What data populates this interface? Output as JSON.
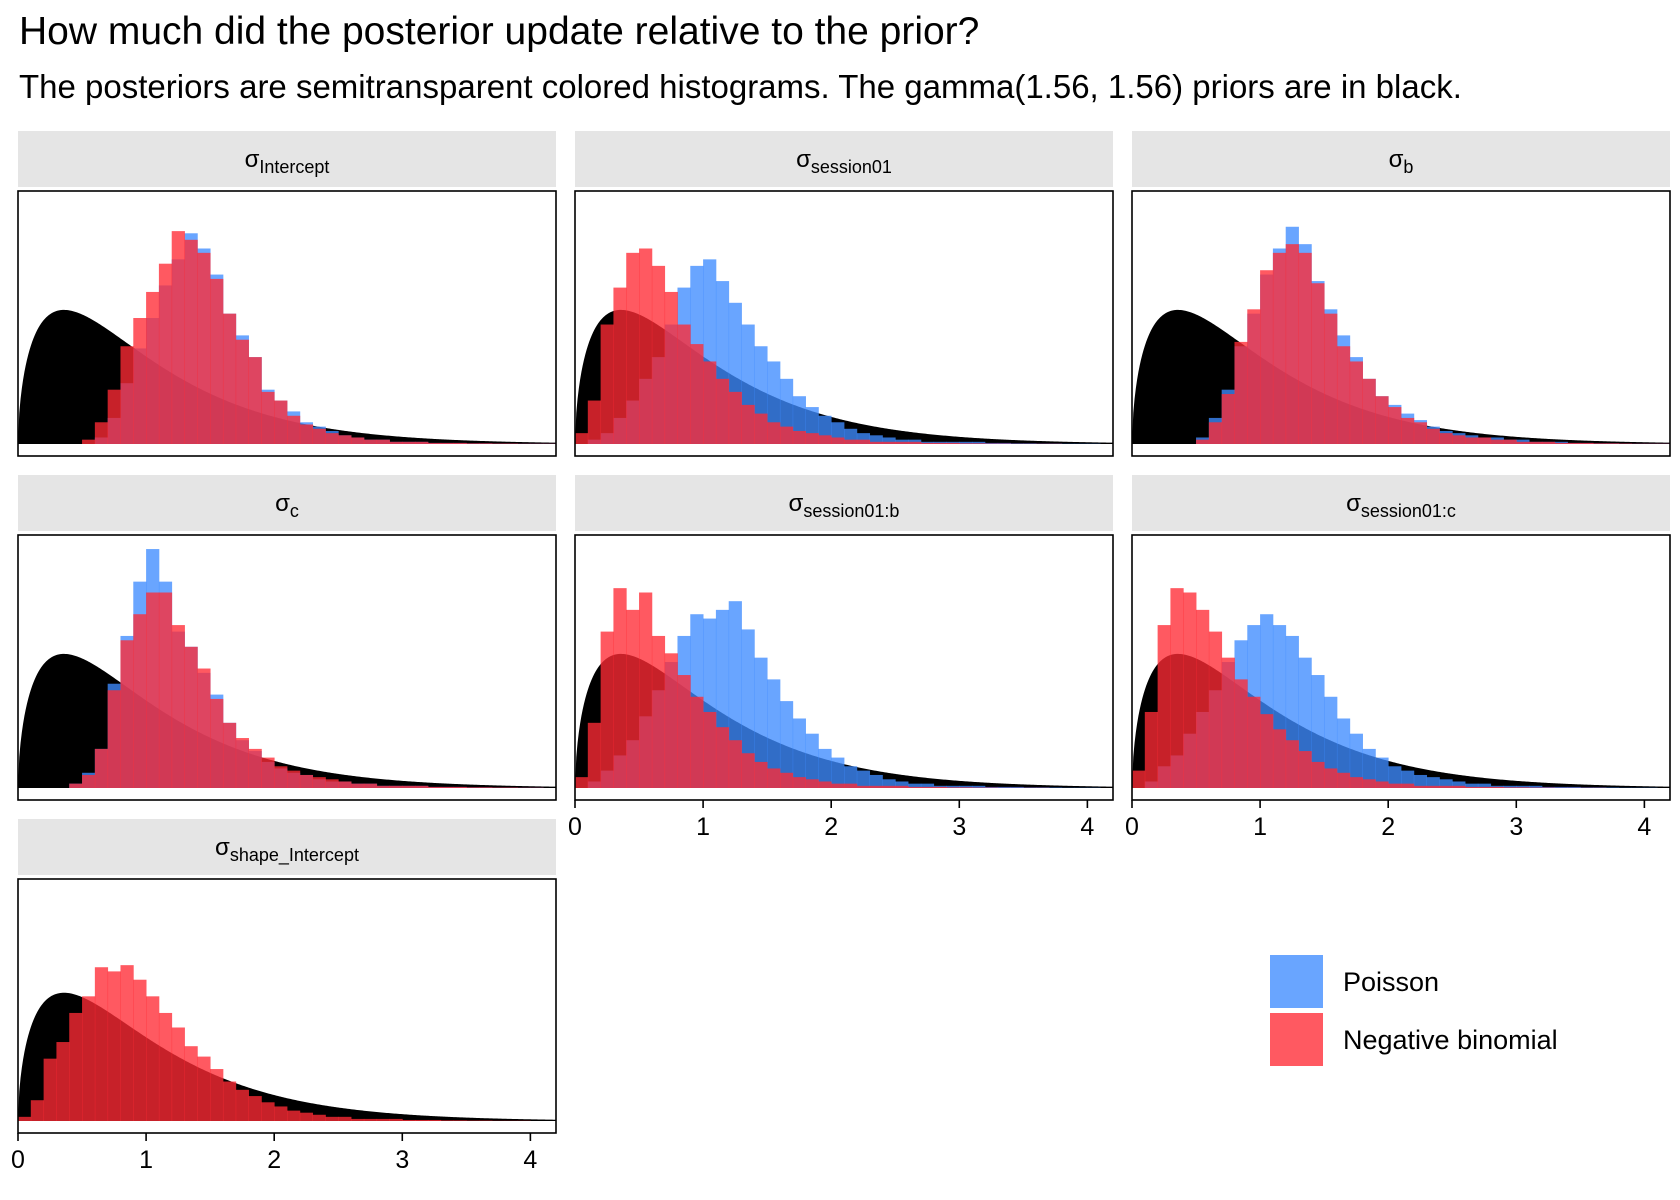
{
  "chart_data": {
    "type": "histogram",
    "title": "How much did the posterior update relative to the prior?",
    "subtitle": "The posteriors are semitransparent colored histograms. The gamma(1.56, 1.56) priors are in black.",
    "xlim": [
      0,
      4.2
    ],
    "x_ticks": [
      0,
      1,
      2,
      3,
      4
    ],
    "bin_width": 0.1,
    "bin_start": 0,
    "prior": {
      "distribution": "gamma",
      "shape": 1.56,
      "rate": 1.56,
      "color": "#000000"
    },
    "series": [
      {
        "name": "Poisson",
        "color": "#3f8cff",
        "opacity": 0.78
      },
      {
        "name": "Negative binomial",
        "color": "#ff2a35",
        "opacity": 0.78
      }
    ],
    "legend_position": "bottom-right",
    "panels": [
      {
        "symbol": "σ",
        "subscript": "Intercept",
        "poisson": [
          0,
          0,
          0,
          0,
          0,
          0,
          3,
          12,
          28,
          44,
          58,
          73,
          85,
          97,
          90,
          78,
          60,
          50,
          40,
          25,
          20,
          15,
          10,
          8,
          6,
          4,
          3,
          2,
          2,
          1,
          1,
          1,
          0.5,
          0.5,
          0.5,
          0.3,
          0.3,
          0.2,
          0.2,
          0.1,
          0.1,
          0.1
        ],
        "negbin": [
          0,
          0,
          0,
          0,
          0,
          2,
          10,
          25,
          45,
          58,
          70,
          83,
          98,
          94,
          88,
          76,
          60,
          48,
          40,
          24,
          20,
          13,
          9,
          7,
          5,
          4,
          3,
          2,
          2,
          1,
          1,
          1,
          0.5,
          0.5,
          0.5,
          0.3,
          0.3,
          0.2,
          0.2,
          0.1,
          0.1,
          0.1
        ]
      },
      {
        "symbol": "σ",
        "subscript": "session01",
        "poisson": [
          0,
          2,
          5,
          12,
          20,
          30,
          40,
          55,
          72,
          82,
          85,
          75,
          65,
          55,
          45,
          38,
          30,
          22,
          17,
          13,
          10,
          7,
          5,
          4,
          3,
          2,
          2,
          1,
          1,
          1,
          1,
          1,
          0.5,
          0.5,
          0.3,
          0.3,
          0.2,
          0.2,
          0.1,
          0.1,
          0.1,
          0
        ],
        "negbin": [
          5,
          20,
          55,
          72,
          88,
          90,
          82,
          70,
          55,
          46,
          38,
          30,
          24,
          18,
          14,
          10,
          8,
          6,
          5,
          4,
          3,
          2,
          2,
          1,
          1,
          1,
          1,
          0.5,
          0.5,
          0.5,
          0.3,
          0.3,
          0.2,
          0.2,
          0.1,
          0.1,
          0.1,
          0.1,
          0,
          0,
          0,
          0
        ]
      },
      {
        "symbol": "σ",
        "subscript": "b",
        "poisson": [
          0,
          0,
          0,
          0,
          0,
          3,
          12,
          25,
          45,
          60,
          78,
          90,
          100,
          92,
          75,
          62,
          50,
          40,
          30,
          22,
          18,
          14,
          11,
          8,
          6,
          5,
          4,
          3,
          3,
          2,
          2,
          1,
          1,
          1,
          0.5,
          0.5,
          0.3,
          0.3,
          0.2,
          0.1,
          0.1,
          0.1
        ],
        "negbin": [
          0,
          0,
          0,
          0,
          0,
          2,
          10,
          23,
          47,
          62,
          80,
          88,
          92,
          88,
          74,
          60,
          45,
          38,
          30,
          22,
          17,
          12,
          10,
          7,
          5,
          4,
          3,
          3,
          2,
          2,
          1,
          1,
          1,
          0.5,
          0.5,
          0.5,
          0.3,
          0.3,
          0.2,
          0.1,
          0.1,
          0.1
        ]
      },
      {
        "symbol": "σ",
        "subscript": "c",
        "poisson": [
          0,
          0,
          0,
          0,
          2,
          7,
          18,
          48,
          70,
          95,
          110,
          95,
          72,
          65,
          53,
          43,
          30,
          22,
          17,
          12,
          9,
          7,
          6,
          4,
          3,
          3,
          2,
          2,
          1,
          1,
          1,
          1,
          0.5,
          0.5,
          0.5,
          0.3,
          0.3,
          0.2,
          0.2,
          0.1,
          0.1,
          0
        ],
        "negbin": [
          0,
          0,
          0,
          0,
          2,
          6,
          18,
          45,
          68,
          80,
          90,
          90,
          75,
          65,
          55,
          41,
          30,
          23,
          18,
          14,
          10,
          8,
          6,
          5,
          4,
          3,
          2,
          2,
          1,
          1,
          1,
          1,
          0.5,
          0.5,
          0.5,
          0.3,
          0.3,
          0.2,
          0.2,
          0.1,
          0.1,
          0
        ]
      },
      {
        "symbol": "σ",
        "subscript": "session01:b",
        "poisson": [
          0,
          3,
          8,
          15,
          22,
          33,
          45,
          58,
          70,
          80,
          78,
          82,
          86,
          73,
          60,
          50,
          40,
          32,
          25,
          18,
          14,
          10,
          8,
          6,
          4,
          3,
          2,
          2,
          1,
          1,
          1,
          1,
          0.5,
          0.5,
          0.5,
          0.3,
          0.3,
          0.2,
          0.1,
          0.1,
          0.1,
          0
        ],
        "negbin": [
          5,
          30,
          72,
          92,
          82,
          90,
          70,
          62,
          52,
          42,
          35,
          28,
          22,
          16,
          12,
          9,
          7,
          5,
          4,
          3,
          2,
          2,
          1,
          1,
          1,
          1,
          0.5,
          0.5,
          0.5,
          0.3,
          0.3,
          0.2,
          0.2,
          0.1,
          0.1,
          0.1,
          0.1,
          0,
          0,
          0,
          0,
          0
        ]
      },
      {
        "symbol": "σ",
        "subscript": "session01:c",
        "poisson": [
          0,
          3,
          10,
          15,
          25,
          35,
          45,
          58,
          68,
          75,
          80,
          75,
          70,
          60,
          52,
          42,
          32,
          25,
          18,
          14,
          10,
          8,
          6,
          5,
          4,
          3,
          2,
          2,
          1,
          1,
          1,
          1,
          0.5,
          0.5,
          0.5,
          0.3,
          0.3,
          0.2,
          0.1,
          0.1,
          0.1,
          0
        ],
        "negbin": [
          8,
          35,
          75,
          92,
          90,
          82,
          72,
          60,
          50,
          42,
          34,
          27,
          22,
          17,
          12,
          9,
          7,
          5,
          4,
          3,
          2,
          2,
          1,
          1,
          1,
          1,
          0.5,
          0.5,
          0.5,
          0.3,
          0.3,
          0.2,
          0.2,
          0.1,
          0.1,
          0.1,
          0.1,
          0,
          0,
          0,
          0,
          0
        ]
      },
      {
        "symbol": "σ",
        "subscript": "shape_Intercept",
        "poisson": null,
        "negbin": [
          2,
          10,
          30,
          38,
          52,
          60,
          74,
          72,
          75,
          68,
          60,
          52,
          45,
          36,
          31,
          25,
          19,
          15,
          12,
          9,
          7,
          5,
          4,
          3,
          2,
          2,
          1,
          1,
          1,
          1,
          0.5,
          0.5,
          0.5,
          0.3,
          0.3,
          0.2,
          0.2,
          0.1,
          0.1,
          0.1,
          0,
          0
        ]
      }
    ]
  }
}
